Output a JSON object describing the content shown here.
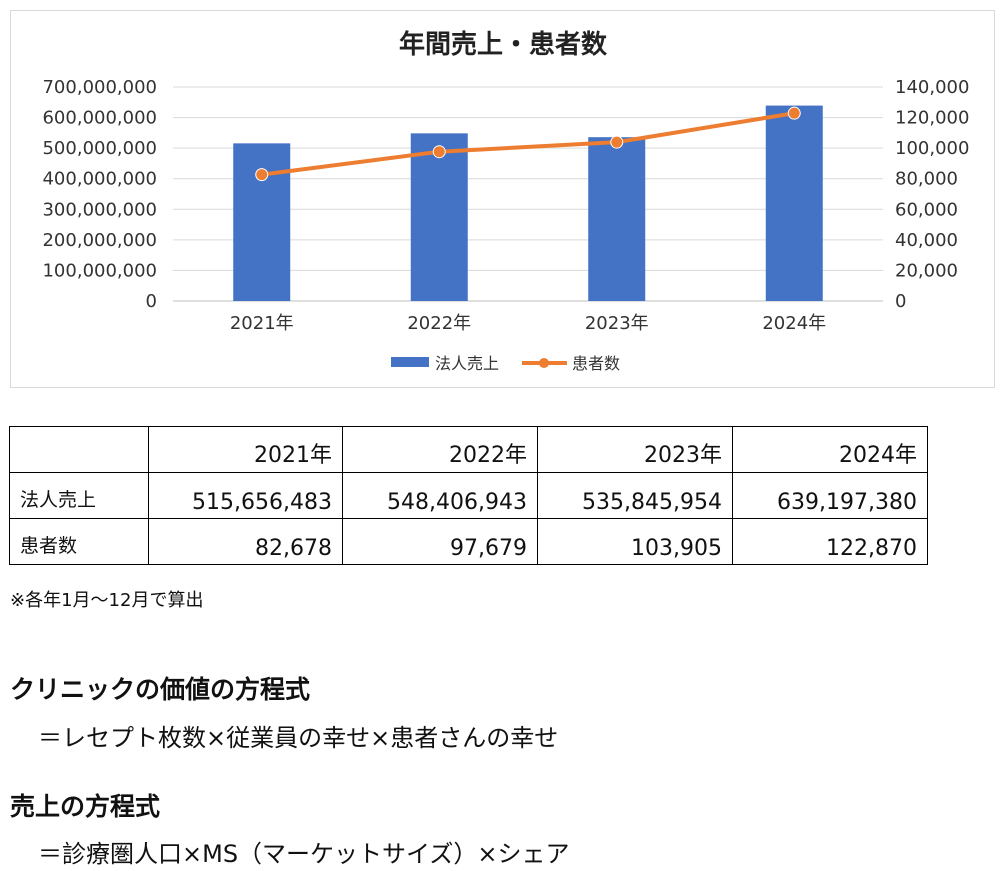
{
  "chart_data": {
    "type": "bar",
    "title": "年間売上・患者数",
    "categories": [
      "2021年",
      "2022年",
      "2023年",
      "2024年"
    ],
    "series": [
      {
        "name": "法人売上",
        "type": "bar",
        "axis": "left",
        "color": "#4472C4",
        "values": [
          515656483,
          548406943,
          535845954,
          639197380
        ]
      },
      {
        "name": "患者数",
        "type": "line",
        "axis": "right",
        "color": "#ED7D31",
        "values": [
          82678,
          97679,
          103905,
          122870
        ]
      }
    ],
    "y_left": {
      "min": 0,
      "max": 700000000,
      "step": 100000000,
      "ticks": [
        "0",
        "100,000,000",
        "200,000,000",
        "300,000,000",
        "400,000,000",
        "500,000,000",
        "600,000,000",
        "700,000,000"
      ]
    },
    "y_right": {
      "min": 0,
      "max": 140000,
      "step": 20000,
      "ticks": [
        "0",
        "20,000",
        "40,000",
        "60,000",
        "80,000",
        "100,000",
        "120,000",
        "140,000"
      ]
    },
    "grid": true,
    "legend_position": "bottom"
  },
  "table": {
    "headers": [
      "",
      "2021年",
      "2022年",
      "2023年",
      "2024年"
    ],
    "rows": [
      {
        "label": "法人売上",
        "cells": [
          "515,656,483",
          "548,406,943",
          "535,845,954",
          "639,197,380"
        ]
      },
      {
        "label": "患者数",
        "cells": [
          "82,678",
          "97,679",
          "103,905",
          "122,870"
        ]
      }
    ]
  },
  "note": "※各年1月～12月で算出",
  "sections": [
    {
      "heading": "クリニックの価値の方程式",
      "formula": "＝レセプト枚数×従業員の幸せ×患者さんの幸せ"
    },
    {
      "heading": "売上の方程式",
      "formula": "＝診療圏人口×MS（マーケットサイズ）×シェア"
    }
  ]
}
